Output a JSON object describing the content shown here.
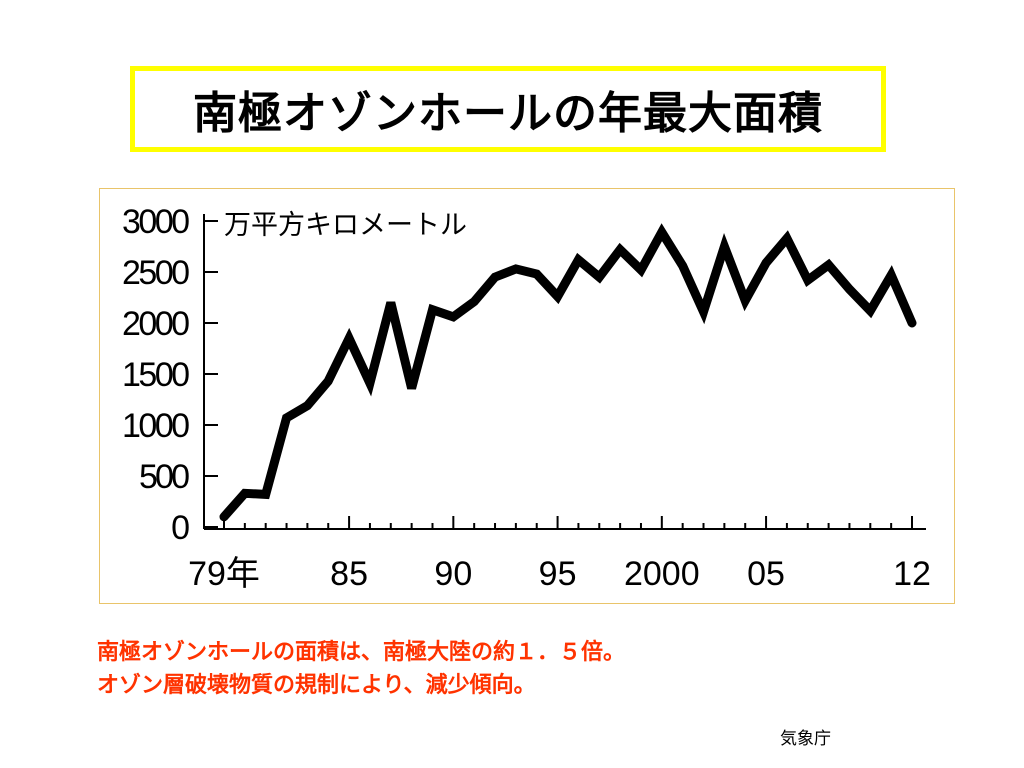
{
  "title": "南極オゾンホールの年最大面積",
  "caption": {
    "line1": "南極オゾンホールの面積は、南極大陸の約１．５倍。",
    "line2": "オゾン層破壊物質の規制により、減少傾向。"
  },
  "source": "気象庁",
  "colors": {
    "title_border": "#ffff00",
    "caption": "#ff3300",
    "panel_border": "#e9c46a",
    "line": "#000000"
  },
  "chart_data": {
    "type": "line",
    "ylabel": "万平方キロメートル",
    "ylim": [
      0,
      3000
    ],
    "xlim": [
      1979,
      2012
    ],
    "y_ticks": [
      0,
      500,
      1000,
      1500,
      2000,
      2500,
      3000
    ],
    "y_tick_labels": [
      "0",
      "500",
      "1000",
      "1500",
      "2000",
      "2500",
      "3000"
    ],
    "x_ticks": [
      1979,
      1985,
      1990,
      1995,
      2000,
      2005,
      2012
    ],
    "x_tick_labels": [
      "79年",
      "85",
      "90",
      "95",
      "2000",
      "05",
      "12"
    ],
    "grid": false,
    "series": [
      {
        "x": [
          1979,
          1980,
          1981,
          1982,
          1983,
          1984,
          1985,
          1986,
          1987,
          1988,
          1989,
          1990,
          1991,
          1992,
          1993,
          1994,
          1995,
          1996,
          1997,
          1998,
          1999,
          2000,
          2001,
          2002,
          2003,
          2004,
          2005,
          2006,
          2007,
          2008,
          2009,
          2010,
          2011,
          2012
        ],
        "y": [
          100,
          330,
          320,
          1070,
          1190,
          1430,
          1850,
          1410,
          2200,
          1360,
          2130,
          2060,
          2210,
          2450,
          2530,
          2480,
          2260,
          2620,
          2450,
          2720,
          2520,
          2890,
          2560,
          2110,
          2750,
          2220,
          2590,
          2830,
          2420,
          2570,
          2330,
          2120,
          2470,
          2000
        ]
      }
    ]
  }
}
